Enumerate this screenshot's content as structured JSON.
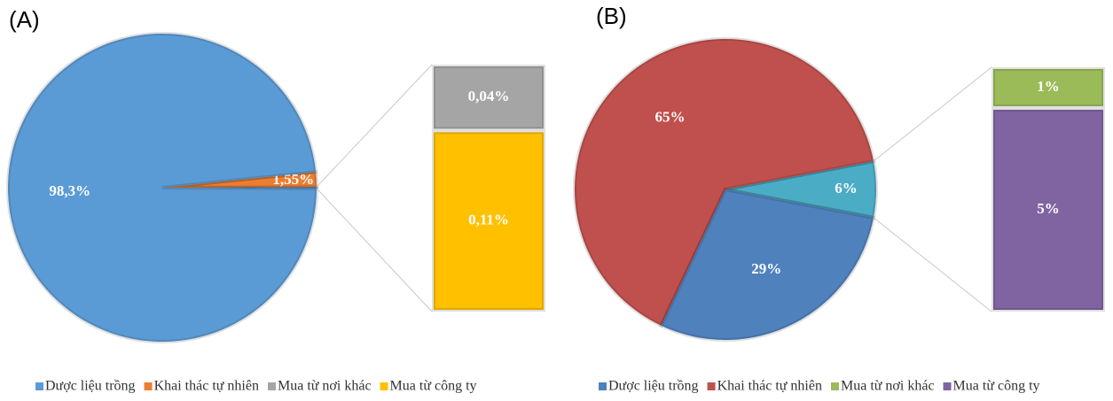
{
  "chart_data": [
    {
      "type": "pie-of-bar",
      "label": "(A)",
      "categories": [
        "Dược liệu trồng",
        "Khai thác tự nhiên",
        "Mua từ nơi khác",
        "Mua từ công ty"
      ],
      "values": [
        98.3,
        1.55,
        0.04,
        0.11
      ],
      "value_labels": [
        "98,3%",
        "1,55%",
        "0,04%",
        "0,11%"
      ],
      "colors": [
        "#5b9bd5",
        "#ed7d31",
        "#a5a5a5",
        "#ffc000"
      ],
      "other_color": "#5b9bd5",
      "bar_start": 2
    },
    {
      "type": "pie-of-bar",
      "label": "(B)",
      "categories": [
        "Dược liệu trồng",
        "Khai thác tự nhiên",
        "Mua từ nơi khác",
        "Mua từ công ty"
      ],
      "values": [
        29,
        65,
        1,
        5
      ],
      "value_labels": [
        "29%",
        "65%",
        "1%",
        "5%"
      ],
      "colors": [
        "#4f81bd",
        "#c0504d",
        "#9bbb59",
        "#8064a2"
      ],
      "other_value": 6,
      "other_label": "6%",
      "other_color": "#4bacc6",
      "bar_start": 2
    }
  ]
}
